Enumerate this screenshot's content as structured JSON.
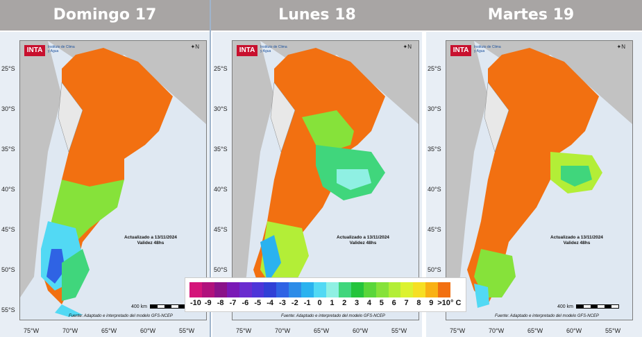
{
  "days": [
    {
      "title": "Domingo 17"
    },
    {
      "title": "Lunes 18"
    },
    {
      "title": "Martes 19"
    }
  ],
  "map": {
    "logo_text": "INTA",
    "institute_text": "Instituto de Clima y Agua",
    "north_label": "N",
    "updated_text": "Actualizado a 13/11/2024",
    "validity_text": "Validez 48hs",
    "scale_text": "400 km",
    "source_text": "Fuente: Adaptado e interpretado del modelo GFS-NCEP",
    "lat_labels": [
      "25°S",
      "30°S",
      "35°S",
      "40°S",
      "45°S",
      "50°S",
      "55°S"
    ],
    "lon_labels": [
      "75°W",
      "70°W",
      "65°W",
      "60°W",
      "55°W"
    ]
  },
  "legend": {
    "labels": [
      "-10",
      "-9",
      "-8",
      "-7",
      "-6",
      "-5",
      "-4",
      "-3",
      "-2",
      "-1",
      "0",
      "1",
      "2",
      "3",
      "4",
      "5",
      "6",
      "7",
      "8",
      "9",
      ">10"
    ],
    "unit": "° C",
    "colors": [
      "#d4157a",
      "#b0117c",
      "#8a1289",
      "#7a19b6",
      "#6a2ccf",
      "#4d35d8",
      "#3040d6",
      "#2f63e4",
      "#2d8ce8",
      "#2ab2ef",
      "#52d9f4",
      "#8ff0e3",
      "#40d67c",
      "#24c43c",
      "#5ad63a",
      "#86e23a",
      "#b3ee37",
      "#dcf230",
      "#f6df23",
      "#f9b114",
      "#f27011"
    ]
  }
}
